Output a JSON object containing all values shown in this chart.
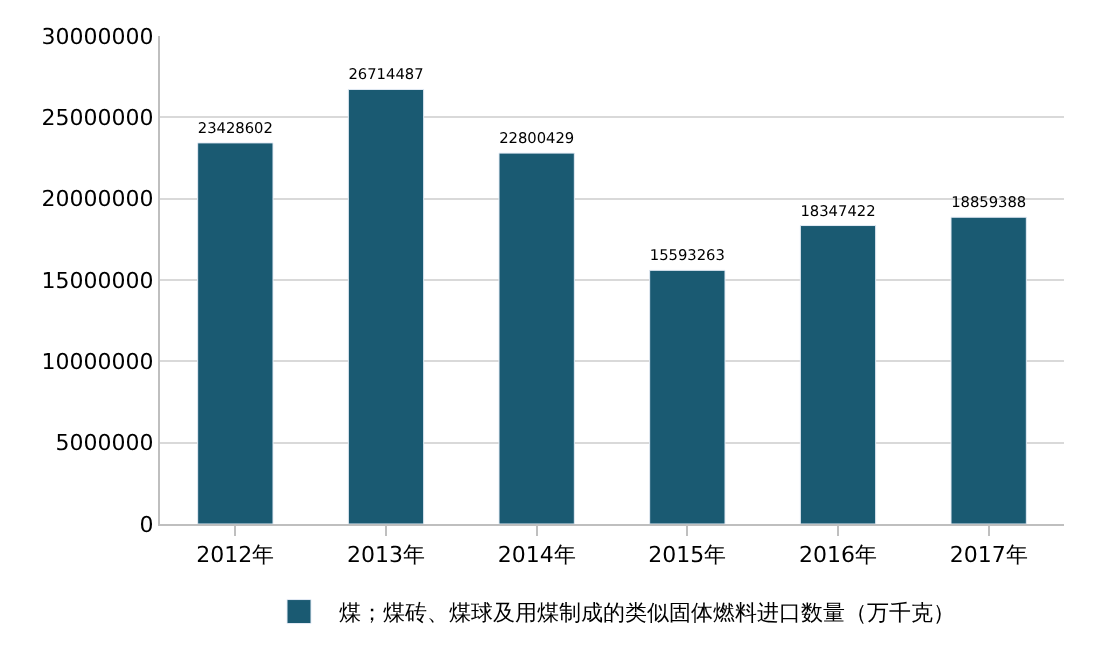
{
  "chart_data": {
    "type": "bar",
    "categories": [
      "2012年",
      "2013年",
      "2014年",
      "2015年",
      "2016年",
      "2017年"
    ],
    "series": [
      {
        "name": "煤；煤砖、煤球及用煤制成的类似固体燃料进口数量（万千克）",
        "color": "#1a5a72",
        "values": [
          23428602,
          26714487,
          22800429,
          15593263,
          18347422,
          18859388
        ]
      }
    ],
    "ylim": [
      0,
      30000000
    ],
    "yticks": [
      0,
      5000000,
      10000000,
      15000000,
      20000000,
      25000000,
      30000000
    ],
    "grid": "y",
    "legend": "bottom",
    "data_labels": true
  }
}
